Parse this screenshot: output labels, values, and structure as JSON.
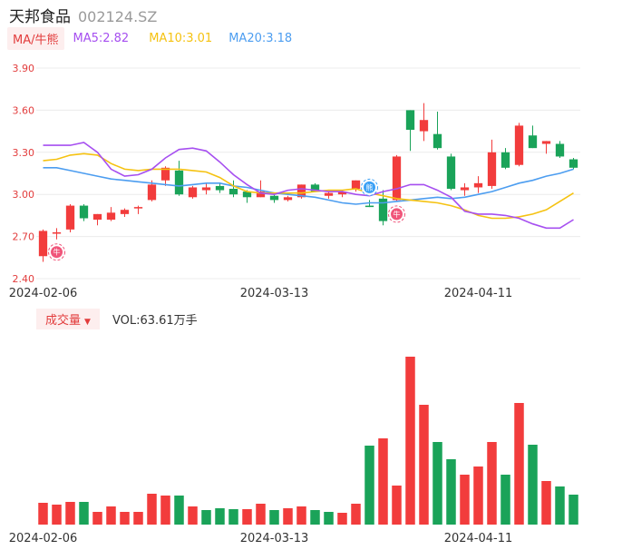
{
  "header": {
    "name": "天邦食品",
    "code": "002124.SZ"
  },
  "legend": {
    "ma_tag": "MA/牛熊",
    "ma5": "MA5:2.82",
    "ma10": "MA10:3.01",
    "ma20": "MA20:3.18"
  },
  "volume_panel": {
    "tag": "成交量",
    "caret": "▼",
    "value": "VOL:63.61万手"
  },
  "markers": {
    "bull": "牛",
    "bear": "熊"
  },
  "colors": {
    "up": "#f23c3c",
    "down": "#1aa359",
    "ma5": "#a64ff0",
    "ma10": "#f5c211",
    "ma20": "#4c9df0",
    "axis_text": "#e23c3c"
  },
  "chart_data": [
    {
      "type": "candlestick",
      "ylim": [
        2.4,
        3.9
      ],
      "y_ticks": [
        "3.90",
        "3.60",
        "3.30",
        "3.00",
        "2.70",
        "2.40"
      ],
      "x_ticks": [
        {
          "index": 0,
          "label": "2024-02-06"
        },
        {
          "index": 17,
          "label": "2024-03-13"
        },
        {
          "index": 32,
          "label": "2024-04-11"
        }
      ],
      "candles": [
        [
          2.56,
          2.75,
          2.52,
          2.74
        ],
        [
          2.72,
          2.76,
          2.68,
          2.73
        ],
        [
          2.75,
          2.93,
          2.73,
          2.92
        ],
        [
          2.92,
          2.93,
          2.81,
          2.83
        ],
        [
          2.82,
          2.86,
          2.78,
          2.86
        ],
        [
          2.82,
          2.91,
          2.81,
          2.87
        ],
        [
          2.86,
          2.9,
          2.84,
          2.89
        ],
        [
          2.9,
          2.92,
          2.86,
          2.91
        ],
        [
          2.96,
          3.1,
          2.95,
          3.07
        ],
        [
          3.1,
          3.2,
          3.06,
          3.19
        ],
        [
          3.17,
          3.24,
          2.99,
          3.0
        ],
        [
          2.98,
          3.06,
          2.97,
          3.05
        ],
        [
          3.03,
          3.08,
          3.0,
          3.05
        ],
        [
          3.06,
          3.08,
          3.01,
          3.03
        ],
        [
          3.04,
          3.1,
          2.98,
          3.0
        ],
        [
          3.02,
          3.03,
          2.94,
          2.98
        ],
        [
          2.98,
          3.1,
          2.98,
          3.02
        ],
        [
          2.99,
          3.01,
          2.94,
          2.96
        ],
        [
          2.96,
          2.99,
          2.95,
          2.98
        ],
        [
          2.98,
          3.07,
          2.97,
          3.07
        ],
        [
          3.07,
          3.08,
          3.02,
          3.02
        ],
        [
          2.99,
          3.02,
          2.97,
          3.01
        ],
        [
          3.0,
          3.03,
          2.98,
          3.02
        ],
        [
          3.04,
          3.1,
          3.02,
          3.1
        ],
        [
          2.92,
          2.96,
          2.91,
          2.91
        ],
        [
          2.97,
          3.03,
          2.78,
          2.81
        ],
        [
          2.96,
          3.28,
          2.95,
          3.27
        ],
        [
          3.6,
          3.6,
          3.31,
          3.46
        ],
        [
          3.45,
          3.65,
          3.38,
          3.53
        ],
        [
          3.43,
          3.59,
          3.32,
          3.33
        ],
        [
          3.27,
          3.29,
          3.03,
          3.04
        ],
        [
          3.03,
          3.08,
          2.99,
          3.05
        ],
        [
          3.05,
          3.13,
          3.01,
          3.08
        ],
        [
          3.06,
          3.39,
          3.04,
          3.3
        ],
        [
          3.3,
          3.33,
          3.18,
          3.19
        ],
        [
          3.21,
          3.51,
          3.2,
          3.49
        ],
        [
          3.42,
          3.49,
          3.33,
          3.33
        ],
        [
          3.36,
          3.38,
          3.29,
          3.38
        ],
        [
          3.36,
          3.38,
          3.26,
          3.27
        ],
        [
          3.25,
          3.26,
          3.18,
          3.19
        ]
      ],
      "ma5": [
        3.35,
        3.35,
        3.35,
        3.37,
        3.3,
        3.18,
        3.13,
        3.14,
        3.18,
        3.26,
        3.32,
        3.33,
        3.31,
        3.23,
        3.14,
        3.07,
        3.01,
        3.0,
        3.03,
        3.04,
        3.03,
        3.02,
        3.02,
        3.0,
        2.99,
        3.02,
        3.04,
        3.07,
        3.07,
        3.03,
        2.98,
        2.88,
        2.86,
        2.86,
        2.85,
        2.83,
        2.79,
        2.76,
        2.76,
        2.82
      ],
      "ma10": [
        3.24,
        3.25,
        3.28,
        3.29,
        3.28,
        3.22,
        3.18,
        3.17,
        3.18,
        3.18,
        3.18,
        3.17,
        3.16,
        3.12,
        3.06,
        3.02,
        3.01,
        3.01,
        3.01,
        3.01,
        3.02,
        3.03,
        3.03,
        3.04,
        3.01,
        2.99,
        2.97,
        2.96,
        2.95,
        2.94,
        2.92,
        2.89,
        2.85,
        2.83,
        2.83,
        2.84,
        2.86,
        2.89,
        2.95,
        3.01
      ],
      "ma20": [
        3.19,
        3.19,
        3.17,
        3.15,
        3.13,
        3.11,
        3.1,
        3.09,
        3.08,
        3.07,
        3.06,
        3.07,
        3.08,
        3.08,
        3.06,
        3.05,
        3.03,
        3.01,
        3.0,
        2.99,
        2.98,
        2.96,
        2.94,
        2.93,
        2.94,
        2.94,
        2.95,
        2.96,
        2.97,
        2.98,
        2.97,
        2.98,
        3.0,
        3.02,
        3.05,
        3.08,
        3.1,
        3.13,
        3.15,
        3.18
      ],
      "signals": [
        {
          "index": 1,
          "kind": "bull"
        },
        {
          "index": 24,
          "kind": "bear"
        },
        {
          "index": 26,
          "kind": "bull"
        }
      ]
    },
    {
      "type": "bar",
      "title": "成交量",
      "x_ticks": [
        {
          "index": 0,
          "label": "2024-02-06"
        },
        {
          "index": 17,
          "label": "2024-03-13"
        },
        {
          "index": 32,
          "label": "2024-04-11"
        }
      ],
      "values": [
        24,
        22,
        25,
        25,
        14,
        20,
        14,
        14,
        34,
        32,
        32,
        20,
        16,
        18,
        17,
        17,
        23,
        16,
        18,
        20,
        16,
        14,
        13,
        23,
        87,
        95,
        43,
        185,
        132,
        91,
        72,
        55,
        64,
        91,
        55,
        134,
        88,
        48,
        42,
        33
      ],
      "direction": [
        "up",
        "up",
        "up",
        "down",
        "up",
        "up",
        "up",
        "up",
        "up",
        "up",
        "down",
        "up",
        "down",
        "down",
        "down",
        "up",
        "up",
        "down",
        "up",
        "up",
        "down",
        "down",
        "up",
        "up",
        "down",
        "up",
        "up",
        "up",
        "up",
        "down",
        "down",
        "up",
        "up",
        "up",
        "down",
        "up",
        "down",
        "up",
        "down",
        "down"
      ]
    }
  ]
}
